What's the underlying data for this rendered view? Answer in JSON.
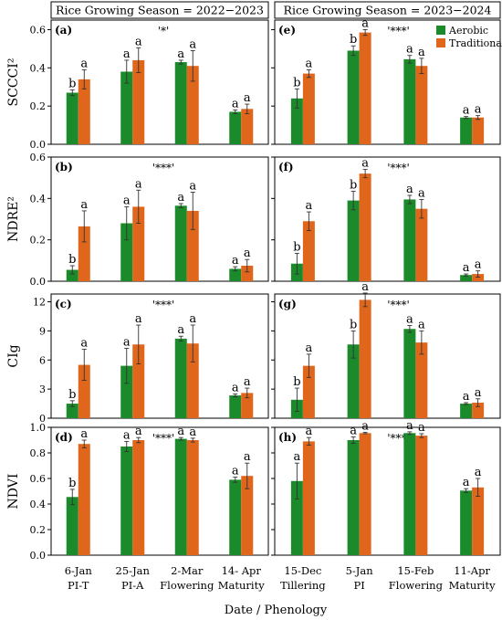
{
  "chart_data": {
    "type": "bar",
    "xlabel": "Date / Phenology",
    "legend": {
      "placement": "top-right of panel (e)",
      "entries": [
        {
          "name": "Aerobic",
          "color": "#1a8a2a"
        },
        {
          "name": "Traditional",
          "color": "#e0661c"
        }
      ]
    },
    "seasons": [
      {
        "title": "Rice Growing Season = 2022−2023",
        "categories": [
          {
            "date": "6-Jan",
            "stage": "PI-T"
          },
          {
            "date": "25-Jan",
            "stage": "PI-A"
          },
          {
            "date": "2-Mar",
            "stage": "Flowering"
          },
          {
            "date": "14- Apr",
            "stage": "Maturity"
          }
        ]
      },
      {
        "title": "Rice Growing Season = 2023−2024",
        "categories": [
          {
            "date": "15-Dec",
            "stage": "Tillering"
          },
          {
            "date": "5-Jan",
            "stage": "PI"
          },
          {
            "date": "15-Feb",
            "stage": "Flowering"
          },
          {
            "date": "11-Apr",
            "stage": "Maturity"
          }
        ]
      }
    ],
    "rows": [
      {
        "ylabel": "SCCCI²",
        "ylim": [
          0,
          0.65
        ],
        "ticks": [
          "0.0",
          "0.2",
          "0.4",
          "0.6"
        ],
        "tick_values": [
          0,
          0.2,
          0.4,
          0.6
        ],
        "panels": [
          {
            "label": "(a)",
            "sig": "'*'",
            "aerobic": [
              0.27,
              0.38,
              0.43,
              0.17
            ],
            "aerobic_err": [
              0.015,
              0.06,
              0.01,
              0.01
            ],
            "traditional": [
              0.34,
              0.44,
              0.41,
              0.185
            ],
            "traditional_err": [
              0.05,
              0.065,
              0.08,
              0.025
            ],
            "letters_aerobic": [
              "b",
              "a",
              "a",
              "a"
            ],
            "letters_traditional": [
              "a",
              "a",
              "a",
              "a"
            ]
          },
          {
            "label": "(e)",
            "sig": "'***'",
            "aerobic": [
              0.24,
              0.49,
              0.445,
              0.14
            ],
            "aerobic_err": [
              0.05,
              0.025,
              0.02,
              0.005
            ],
            "traditional": [
              0.37,
              0.585,
              0.41,
              0.14
            ],
            "traditional_err": [
              0.02,
              0.015,
              0.04,
              0.01
            ],
            "letters_aerobic": [
              "b",
              "b",
              "a",
              "a"
            ],
            "letters_traditional": [
              "a",
              "a",
              "a",
              "a"
            ]
          }
        ]
      },
      {
        "ylabel": "NDRE²",
        "ylim": [
          0,
          0.6
        ],
        "ticks": [
          "0.0",
          "0.2",
          "0.4",
          "0.6"
        ],
        "tick_values": [
          0,
          0.2,
          0.4,
          0.6
        ],
        "panels": [
          {
            "label": "(b)",
            "sig": "'***'",
            "aerobic": [
              0.055,
              0.28,
              0.365,
              0.06
            ],
            "aerobic_err": [
              0.02,
              0.08,
              0.01,
              0.01
            ],
            "traditional": [
              0.265,
              0.36,
              0.34,
              0.075
            ],
            "traditional_err": [
              0.075,
              0.08,
              0.09,
              0.03
            ],
            "letters_aerobic": [
              "b",
              "a",
              "a",
              "a"
            ],
            "letters_traditional": [
              "a",
              "a",
              "a",
              "a"
            ]
          },
          {
            "label": "(f)",
            "sig": "'***'",
            "aerobic": [
              0.085,
              0.39,
              0.395,
              0.03
            ],
            "aerobic_err": [
              0.05,
              0.045,
              0.02,
              0.005
            ],
            "traditional": [
              0.29,
              0.52,
              0.35,
              0.035
            ],
            "traditional_err": [
              0.045,
              0.02,
              0.045,
              0.015
            ],
            "letters_aerobic": [
              "b",
              "b",
              "a",
              "a"
            ],
            "letters_traditional": [
              "a",
              "a",
              "a",
              "a"
            ]
          }
        ]
      },
      {
        "ylabel": "CIg",
        "ylim": [
          0,
          12.8
        ],
        "ticks": [
          "0",
          "3",
          "6",
          "9",
          "12"
        ],
        "tick_values": [
          0,
          3,
          6,
          9,
          12
        ],
        "panels": [
          {
            "label": "(c)",
            "sig": "'***'",
            "aerobic": [
              1.5,
              5.4,
              8.2,
              2.35
            ],
            "aerobic_err": [
              0.3,
              1.8,
              0.25,
              0.15
            ],
            "traditional": [
              5.5,
              7.6,
              7.7,
              2.6
            ],
            "traditional_err": [
              1.6,
              2.0,
              1.9,
              0.5
            ],
            "letters_aerobic": [
              "b",
              "a",
              "a",
              "a"
            ],
            "letters_traditional": [
              "a",
              "a",
              "a",
              "a"
            ]
          },
          {
            "label": "(g)",
            "sig": "'***'",
            "aerobic": [
              1.9,
              7.6,
              9.2,
              1.5
            ],
            "aerobic_err": [
              1.2,
              1.4,
              0.35,
              0.1
            ],
            "traditional": [
              5.4,
              12.2,
              7.8,
              1.6
            ],
            "traditional_err": [
              1.2,
              0.7,
              1.2,
              0.4
            ],
            "letters_aerobic": [
              "b",
              "b",
              "a",
              "a"
            ],
            "letters_traditional": [
              "a",
              "a",
              "a",
              "a"
            ]
          }
        ]
      },
      {
        "ylabel": "NDVI",
        "ylim": [
          0,
          1.0
        ],
        "ticks": [
          "0.0",
          "0.2",
          "0.4",
          "0.6",
          "0.8",
          "1.0"
        ],
        "tick_values": [
          0,
          0.2,
          0.4,
          0.6,
          0.8,
          1.0
        ],
        "panels": [
          {
            "label": "(d)",
            "sig": "'***'",
            "aerobic": [
              0.455,
              0.85,
              0.91,
              0.59
            ],
            "aerobic_err": [
              0.06,
              0.04,
              0.01,
              0.02
            ],
            "traditional": [
              0.87,
              0.9,
              0.9,
              0.62
            ],
            "traditional_err": [
              0.03,
              0.02,
              0.015,
              0.1
            ],
            "letters_aerobic": [
              "b",
              "a",
              "a",
              "a"
            ],
            "letters_traditional": [
              "a",
              "a",
              "a",
              "a"
            ]
          },
          {
            "label": "(h)",
            "sig": "'***'",
            "aerobic": [
              0.58,
              0.9,
              0.955,
              0.505
            ],
            "aerobic_err": [
              0.14,
              0.025,
              0.01,
              0.015
            ],
            "traditional": [
              0.89,
              0.955,
              0.935,
              0.53
            ],
            "traditional_err": [
              0.03,
              0.005,
              0.015,
              0.07
            ],
            "letters_aerobic": [
              "a",
              "a",
              "a",
              "a"
            ],
            "letters_traditional": [
              "a",
              "a",
              "a",
              "a"
            ]
          }
        ]
      }
    ]
  }
}
